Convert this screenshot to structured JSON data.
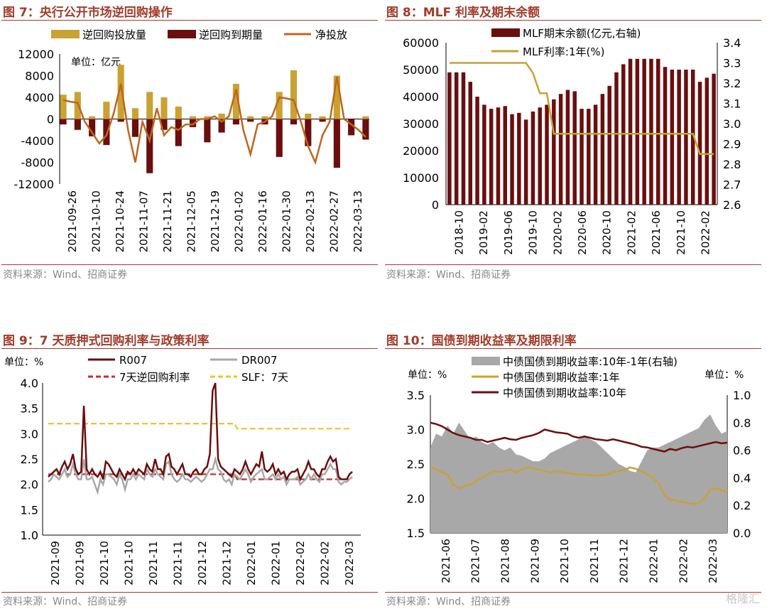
{
  "footer_source": "资料来源：Wind、招商证券",
  "watermark": "格隆汇",
  "chart_data": [
    {
      "id": "c7",
      "type": "bar",
      "title": "图 7：央行公开市场逆回购操作",
      "unit": "单位：亿元",
      "ylim": [
        -12000,
        12000
      ],
      "yticks": [
        "12000",
        "8000",
        "4000",
        "0",
        "-4000",
        "-8000",
        "-12000"
      ],
      "xticks": [
        "2021-09-26",
        "2021-10-10",
        "2021-10-24",
        "2021-11-07",
        "2021-11-21",
        "2021-12-05",
        "2021-12-19",
        "2022-01-02",
        "2022-01-16",
        "2022-01-30",
        "2022-02-13",
        "2022-02-27",
        "2022-03-13"
      ],
      "series": [
        {
          "name": "逆回购投放量",
          "color": "#c9a232",
          "values": [
            4500,
            0,
            5000,
            0,
            500,
            0,
            3200,
            0,
            10000,
            0,
            2000,
            0,
            5000,
            0,
            4000,
            0,
            2300,
            0,
            500,
            0,
            500,
            0,
            1000,
            0,
            6500,
            0,
            500,
            0,
            500,
            0,
            5000,
            0,
            9000,
            0,
            1000,
            0,
            500,
            0,
            8000,
            0,
            0,
            0,
            500
          ]
        },
        {
          "name": "逆回购到期量",
          "color": "#6b0e0e",
          "values": [
            -1000,
            0,
            -2000,
            0,
            -3200,
            0,
            -4800,
            0,
            -500,
            0,
            -3300,
            0,
            -10000,
            0,
            -2000,
            0,
            -5000,
            0,
            -1500,
            0,
            -4300,
            0,
            -2500,
            0,
            -1000,
            0,
            -500,
            0,
            -1000,
            0,
            -7000,
            0,
            -1000,
            0,
            -5000,
            0,
            -500,
            0,
            -9000,
            0,
            -3000,
            0,
            -3800
          ]
        },
        {
          "name": "净投放",
          "color": "#c0651e",
          "values": [
            3500,
            3200,
            3000,
            -500,
            -2500,
            -4500,
            -3000,
            1000,
            6500,
            -2000,
            -8000,
            -500,
            -4000,
            2000,
            -3000,
            -1500,
            -2000,
            -1000,
            -1000,
            0,
            0,
            500,
            -500,
            500,
            5500,
            -2000,
            -6500,
            -1000,
            -500,
            500,
            4000,
            3800,
            3500,
            -500,
            -5000,
            -8000,
            -3000,
            -500,
            7800,
            0,
            -1000,
            -2000,
            -3300
          ]
        }
      ]
    },
    {
      "id": "c8",
      "type": "bar",
      "title": "图 8：MLF 利率及期末余额",
      "ylim": [
        0,
        60000
      ],
      "y2lim": [
        2.6,
        3.4
      ],
      "yticks": [
        "60000",
        "50000",
        "40000",
        "30000",
        "20000",
        "10000",
        "0"
      ],
      "y2ticks": [
        "3.4",
        "3.3",
        "3.2",
        "3.1",
        "3.0",
        "2.9",
        "2.8",
        "2.7",
        "2.6"
      ],
      "xticks": [
        "2018-10",
        "2019-02",
        "2019-06",
        "2019-10",
        "2020-02",
        "2020-06",
        "2020-10",
        "2021-02",
        "2021-06",
        "2021-10",
        "2022-02"
      ],
      "series": [
        {
          "name": "MLF期末余额(亿元,右轴)",
          "color": "#6b0e0e",
          "values": [
            49000,
            49000,
            49000,
            45500,
            40000,
            37000,
            35500,
            36000,
            36500,
            33500,
            34000,
            31500,
            34500,
            36000,
            37000,
            39000,
            41000,
            42500,
            42000,
            35500,
            35500,
            37000,
            41000,
            44000,
            49000,
            52000,
            54000,
            54000,
            54000,
            54000,
            54000,
            51000,
            50000,
            50000,
            50000,
            50000,
            45500,
            47000,
            48500
          ]
        },
        {
          "name": "MLF利率:1年(%)",
          "color": "#c9a232",
          "values": [
            3.3,
            3.3,
            3.3,
            3.3,
            3.3,
            3.3,
            3.3,
            3.3,
            3.3,
            3.3,
            3.3,
            3.3,
            3.25,
            3.15,
            3.15,
            2.95,
            2.95,
            2.95,
            2.95,
            2.95,
            2.95,
            2.95,
            2.95,
            2.95,
            2.95,
            2.95,
            2.95,
            2.95,
            2.95,
            2.95,
            2.95,
            2.95,
            2.95,
            2.95,
            2.95,
            2.95,
            2.85,
            2.85,
            2.85
          ]
        }
      ]
    },
    {
      "id": "c9",
      "type": "line",
      "title": "图 9：7 天质押式回购利率与政策利率",
      "unit": "单位：%",
      "ylim": [
        1.0,
        4.0
      ],
      "yticks": [
        "4.0",
        "3.5",
        "3.0",
        "2.5",
        "2.0",
        "1.5",
        "1.0"
      ],
      "xticks": [
        "2021-09",
        "2021-09",
        "2021-10",
        "2021-10",
        "2021-11",
        "2021-11",
        "2021-12",
        "2021-12",
        "2022-01",
        "2022-01",
        "2022-02",
        "2022-02",
        "2022-03"
      ],
      "series": [
        {
          "name": "R007",
          "color": "#6b0e0e",
          "values": [
            2.15,
            2.2,
            2.25,
            2.3,
            2.2,
            2.35,
            2.45,
            2.3,
            2.4,
            2.6,
            2.3,
            2.2,
            2.25,
            3.55,
            2.3,
            2.2,
            2.3,
            2.2,
            2.15,
            2.25,
            2.1,
            2.45,
            2.4,
            2.3,
            2.2,
            2.15,
            2.3,
            2.2,
            2.1,
            2.25,
            2.2,
            2.3,
            2.2,
            2.3,
            2.25,
            2.2,
            2.4,
            2.3,
            2.25,
            2.5,
            2.3,
            2.3,
            2.2,
            2.55,
            2.6,
            2.35,
            2.3,
            2.2,
            2.3,
            2.4,
            2.2,
            2.2,
            2.15,
            2.25,
            2.3,
            2.2,
            2.2,
            2.3,
            2.35,
            2.6,
            3.85,
            4.0,
            2.5,
            2.35,
            2.3,
            2.25,
            2.2,
            2.15,
            2.3,
            2.25,
            2.2,
            2.3,
            2.45,
            2.3,
            2.2,
            2.3,
            2.4,
            2.35,
            2.65,
            2.3,
            2.25,
            2.3,
            2.4,
            2.2,
            2.3,
            2.2,
            2.25,
            2.1,
            2.2,
            2.25,
            2.25,
            2.3,
            2.1,
            2.2,
            2.3,
            2.45,
            2.3,
            2.3,
            2.2,
            2.15,
            2.3,
            2.3,
            2.45,
            2.55,
            2.45,
            2.5,
            2.15,
            2.1,
            2.1,
            2.1,
            2.2,
            2.25
          ]
        },
        {
          "name": "DR007",
          "color": "#a8a8a8",
          "values": [
            2.05,
            2.1,
            2.2,
            2.15,
            2.1,
            2.2,
            2.3,
            2.15,
            2.2,
            2.4,
            2.2,
            2.1,
            2.1,
            2.5,
            2.1,
            2.1,
            2.15,
            2.0,
            1.85,
            2.1,
            2.0,
            2.2,
            2.2,
            2.15,
            2.1,
            2.0,
            2.2,
            2.1,
            1.9,
            2.1,
            2.1,
            2.2,
            2.1,
            2.2,
            2.15,
            2.1,
            2.3,
            2.2,
            2.15,
            2.3,
            2.2,
            2.15,
            2.1,
            2.4,
            2.45,
            2.2,
            2.1,
            2.05,
            2.1,
            2.2,
            2.1,
            2.1,
            2.05,
            2.1,
            2.15,
            2.1,
            2.05,
            2.1,
            2.2,
            2.3,
            2.3,
            2.5,
            2.3,
            2.25,
            2.1,
            2.05,
            2.1,
            2.0,
            2.2,
            2.15,
            2.1,
            2.2,
            2.3,
            2.2,
            2.05,
            2.15,
            2.2,
            2.25,
            2.3,
            2.1,
            2.1,
            2.15,
            2.2,
            2.1,
            2.2,
            2.1,
            2.15,
            2.0,
            2.1,
            2.1,
            2.1,
            2.15,
            2.0,
            2.05,
            2.1,
            2.2,
            2.1,
            2.2,
            2.1,
            2.05,
            2.2,
            2.2,
            2.3,
            2.4,
            2.3,
            2.3,
            2.05,
            2.0,
            2.05,
            2.05,
            2.1,
            2.15
          ]
        },
        {
          "name": "7天逆回购利率",
          "color": "#c0312e",
          "dashed": true,
          "values": [
            2.2,
            2.2,
            2.2,
            2.2,
            2.2,
            2.2,
            2.2,
            2.2,
            2.2,
            2.2,
            2.2,
            2.2,
            2.2,
            2.2,
            2.2,
            2.2,
            2.2,
            2.2,
            2.2,
            2.2,
            2.2,
            2.2,
            2.2,
            2.2,
            2.2,
            2.2,
            2.2,
            2.2,
            2.2,
            2.2,
            2.2,
            2.2,
            2.2,
            2.2,
            2.2,
            2.2,
            2.2,
            2.2,
            2.2,
            2.2,
            2.2,
            2.2,
            2.2,
            2.2,
            2.2,
            2.2,
            2.2,
            2.2,
            2.2,
            2.2,
            2.2,
            2.2,
            2.2,
            2.2,
            2.2,
            2.2,
            2.2,
            2.2,
            2.2,
            2.2,
            2.2,
            2.2,
            2.2,
            2.2,
            2.2,
            2.2,
            2.2,
            2.2,
            2.2,
            2.1,
            2.1,
            2.1,
            2.1,
            2.1,
            2.1,
            2.1,
            2.1,
            2.1,
            2.1,
            2.1,
            2.1,
            2.1,
            2.1,
            2.1,
            2.1,
            2.1,
            2.1,
            2.1,
            2.1,
            2.1,
            2.1,
            2.1,
            2.1,
            2.1,
            2.1,
            2.1,
            2.1,
            2.1,
            2.1,
            2.1,
            2.1,
            2.1,
            2.1,
            2.1,
            2.1,
            2.1,
            2.1,
            2.1,
            2.1,
            2.1,
            2.1,
            2.1
          ]
        },
        {
          "name": "SLF：7天",
          "color": "#f2c22e",
          "dashed": true,
          "values": [
            3.2,
            3.2,
            3.2,
            3.2,
            3.2,
            3.2,
            3.2,
            3.2,
            3.2,
            3.2,
            3.2,
            3.2,
            3.2,
            3.2,
            3.2,
            3.2,
            3.2,
            3.2,
            3.2,
            3.2,
            3.2,
            3.2,
            3.2,
            3.2,
            3.2,
            3.2,
            3.2,
            3.2,
            3.2,
            3.2,
            3.2,
            3.2,
            3.2,
            3.2,
            3.2,
            3.2,
            3.2,
            3.2,
            3.2,
            3.2,
            3.2,
            3.2,
            3.2,
            3.2,
            3.2,
            3.2,
            3.2,
            3.2,
            3.2,
            3.2,
            3.2,
            3.2,
            3.2,
            3.2,
            3.2,
            3.2,
            3.2,
            3.2,
            3.2,
            3.2,
            3.2,
            3.2,
            3.2,
            3.2,
            3.2,
            3.2,
            3.2,
            3.2,
            3.2,
            3.1,
            3.1,
            3.1,
            3.1,
            3.1,
            3.1,
            3.1,
            3.1,
            3.1,
            3.1,
            3.1,
            3.1,
            3.1,
            3.1,
            3.1,
            3.1,
            3.1,
            3.1,
            3.1,
            3.1,
            3.1,
            3.1,
            3.1,
            3.1,
            3.1,
            3.1,
            3.1,
            3.1,
            3.1,
            3.1,
            3.1,
            3.1,
            3.1,
            3.1,
            3.1,
            3.1,
            3.1,
            3.1,
            3.1,
            3.1,
            3.1,
            3.1,
            3.1
          ]
        }
      ]
    },
    {
      "id": "c10",
      "type": "line",
      "title": "图 10：国债到期收益率及期限利率",
      "unit_left": "单位：%",
      "unit_right": "单位：%",
      "ylim": [
        1.5,
        3.5
      ],
      "y2lim": [
        0,
        1.0
      ],
      "yticks": [
        "3.5",
        "3.0",
        "2.5",
        "2.0",
        "1.5"
      ],
      "y2ticks": [
        "1.0",
        "0.8",
        "0.6",
        "0.4",
        "0.2",
        "0.0"
      ],
      "xticks": [
        "2021-06",
        "2021-07",
        "2021-08",
        "2021-09",
        "2021-10",
        "2021-11",
        "2021-12",
        "2022-01",
        "2022-02",
        "2022-03"
      ],
      "series": [
        {
          "name": "中债国债到期收益率:10年-1年(右轴)",
          "color": "#a8a8a8",
          "area": true,
          "values": [
            0.62,
            0.72,
            0.7,
            0.78,
            0.72,
            0.8,
            0.74,
            0.68,
            0.7,
            0.66,
            0.64,
            0.66,
            0.62,
            0.6,
            0.62,
            0.57,
            0.56,
            0.54,
            0.52,
            0.52,
            0.54,
            0.58,
            0.6,
            0.62,
            0.64,
            0.66,
            0.68,
            0.7,
            0.68,
            0.66,
            0.62,
            0.58,
            0.54,
            0.5,
            0.48,
            0.45,
            0.44,
            0.52,
            0.6,
            0.62,
            0.62,
            0.64,
            0.66,
            0.68,
            0.7,
            0.72,
            0.74,
            0.76,
            0.82,
            0.86,
            0.78,
            0.72,
            0.74
          ]
        },
        {
          "name": "中债国债到期收益率:1年",
          "color": "#c9a232",
          "values": [
            2.45,
            2.42,
            2.38,
            2.35,
            2.2,
            2.15,
            2.18,
            2.2,
            2.25,
            2.3,
            2.35,
            2.4,
            2.38,
            2.4,
            2.42,
            2.38,
            2.42,
            2.45,
            2.44,
            2.42,
            2.4,
            2.38,
            2.4,
            2.38,
            2.37,
            2.36,
            2.35,
            2.35,
            2.34,
            2.33,
            2.34,
            2.35,
            2.38,
            2.4,
            2.42,
            2.45,
            2.43,
            2.4,
            2.35,
            2.3,
            2.22,
            2.05,
            1.98,
            1.97,
            1.95,
            1.94,
            1.92,
            1.93,
            2.0,
            2.12,
            2.15,
            2.12,
            2.1
          ]
        },
        {
          "name": "中债国债到期收益率:10年",
          "color": "#6b0e0e",
          "values": [
            3.1,
            3.08,
            3.05,
            3.0,
            2.95,
            2.92,
            2.9,
            2.88,
            2.85,
            2.85,
            2.82,
            2.84,
            2.86,
            2.88,
            2.86,
            2.85,
            2.88,
            2.9,
            2.92,
            2.95,
            3.0,
            2.98,
            2.96,
            2.95,
            2.94,
            2.9,
            2.88,
            2.9,
            2.88,
            2.86,
            2.85,
            2.84,
            2.86,
            2.84,
            2.82,
            2.8,
            2.78,
            2.75,
            2.74,
            2.72,
            2.7,
            2.68,
            2.72,
            2.7,
            2.73,
            2.75,
            2.74,
            2.76,
            2.78,
            2.8,
            2.82,
            2.8,
            2.81
          ]
        }
      ]
    }
  ]
}
